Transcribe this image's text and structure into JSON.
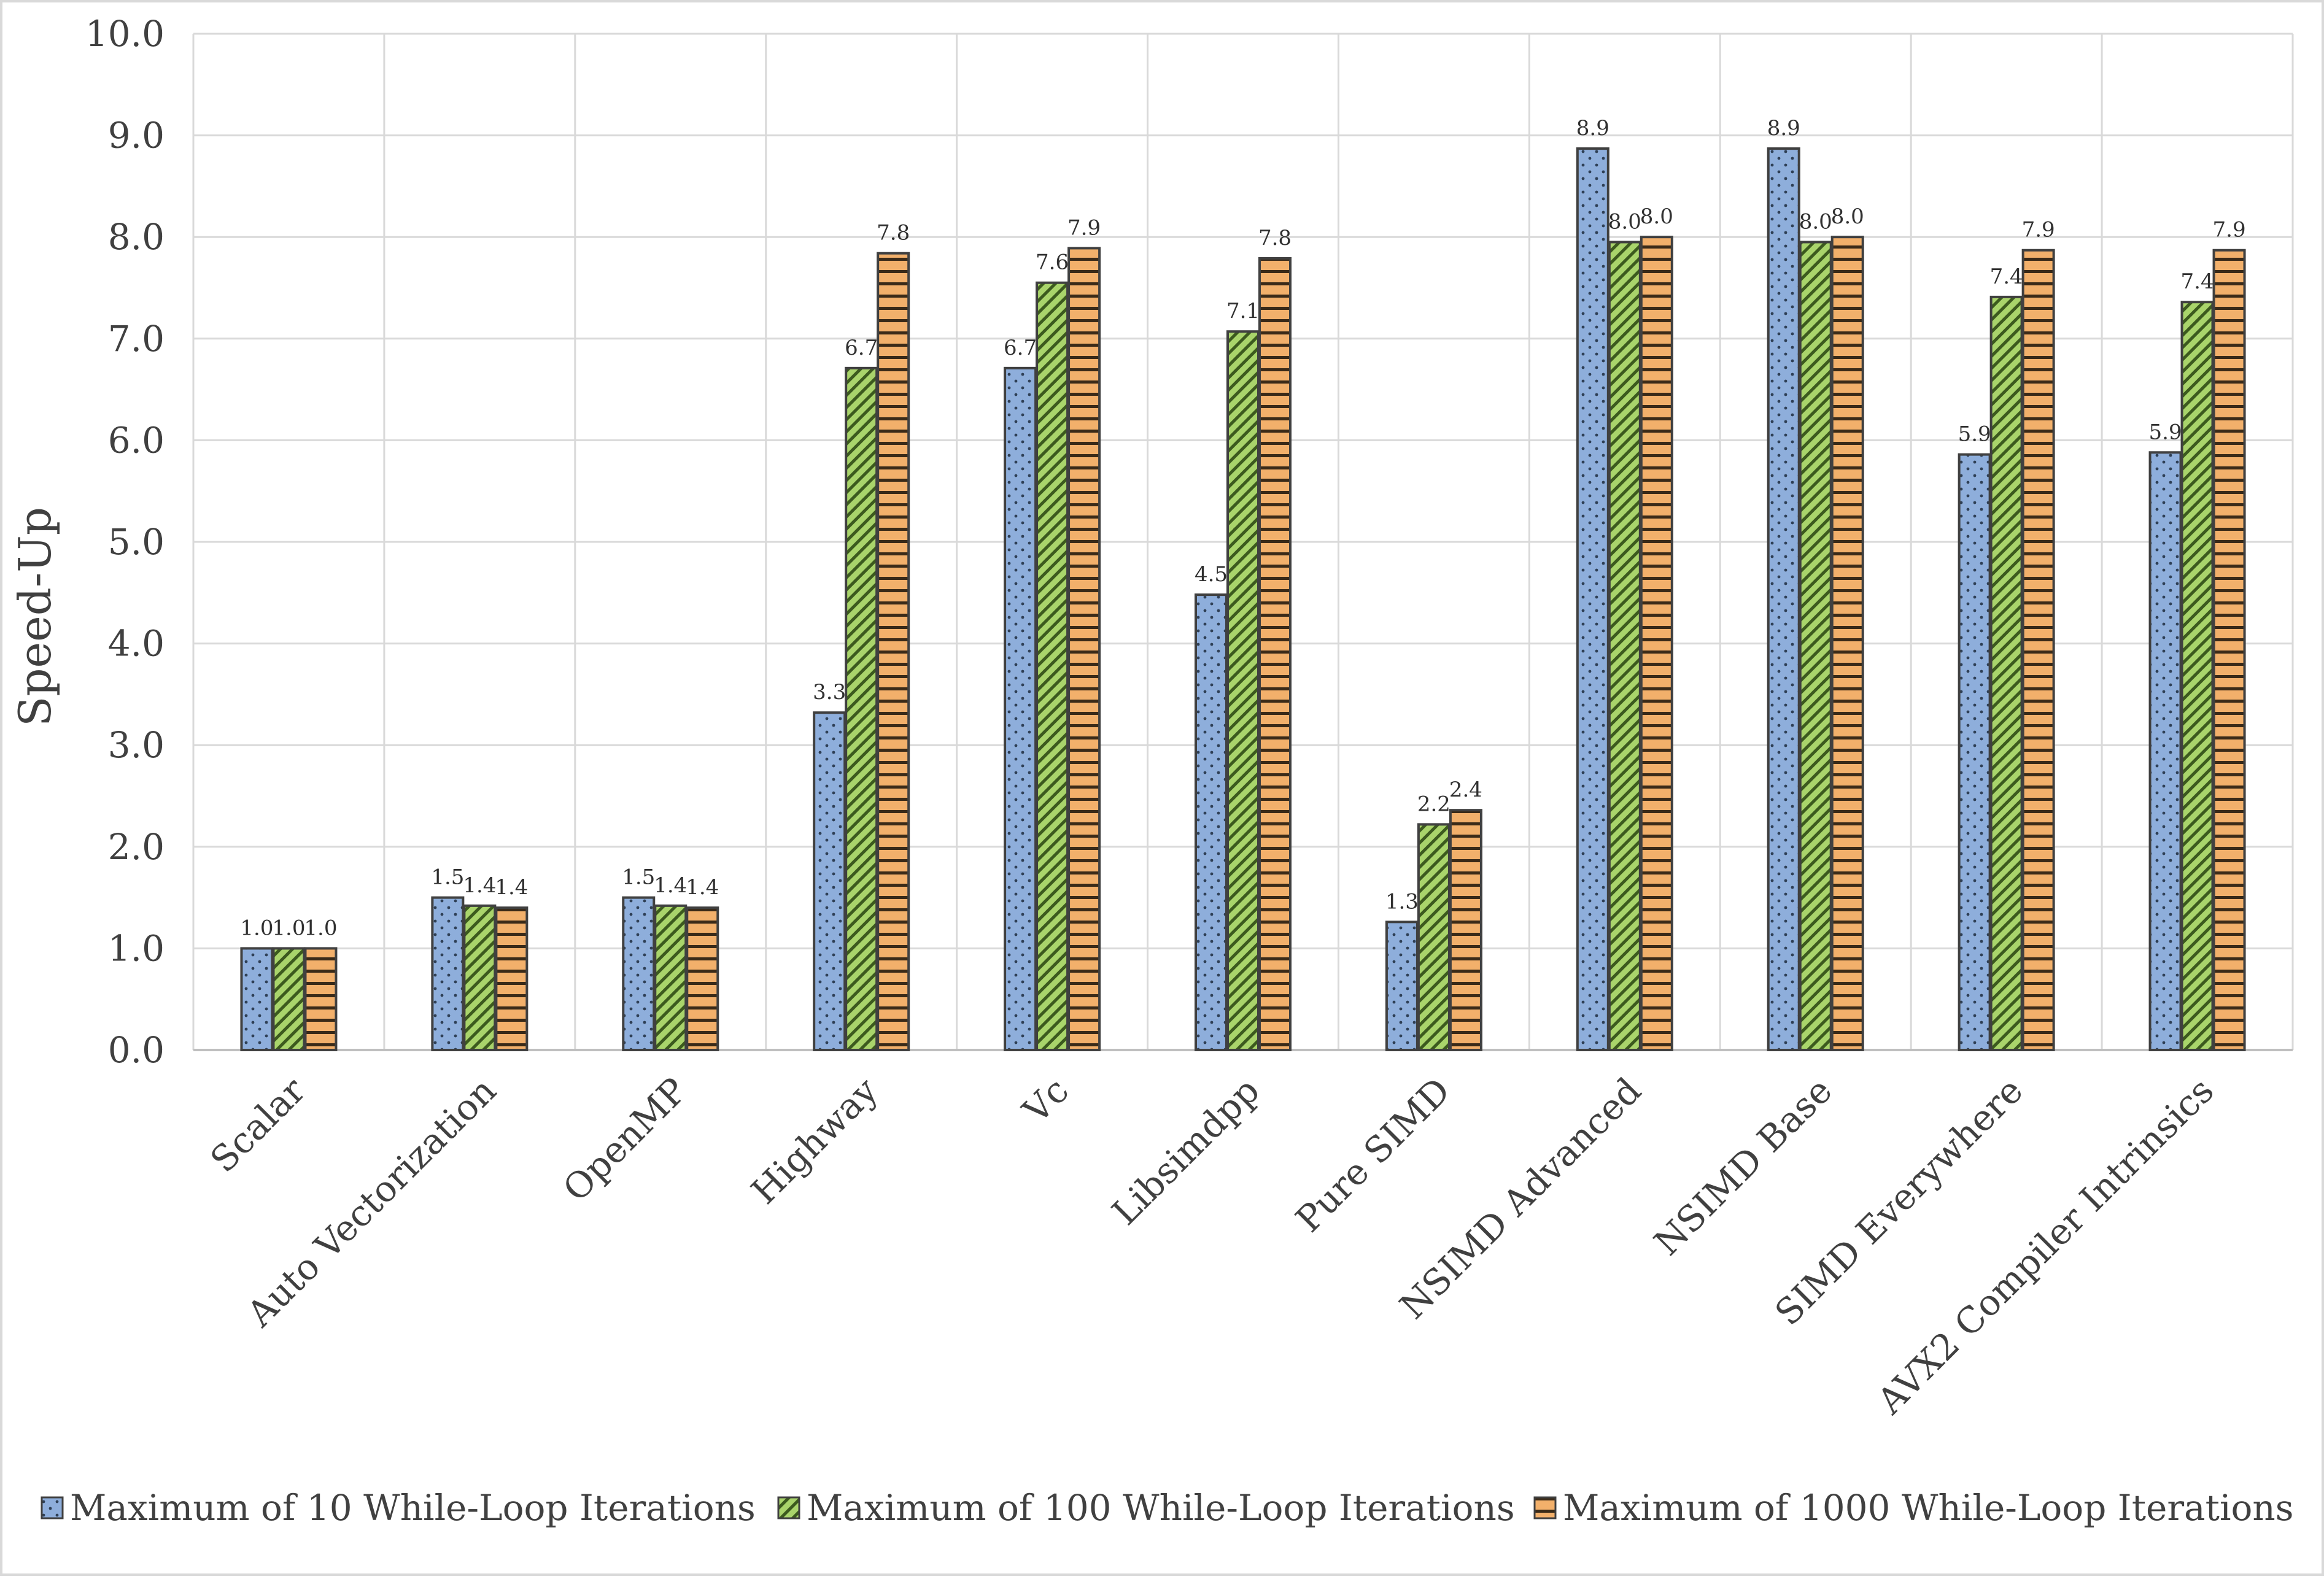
{
  "chart_data": {
    "type": "bar",
    "title": "",
    "xlabel": "",
    "ylabel": "Speed-Up",
    "ylim": [
      0,
      10
    ],
    "ytick_step": 1,
    "ytick_labels": [
      "0.0",
      "1.0",
      "2.0",
      "3.0",
      "4.0",
      "5.0",
      "6.0",
      "7.0",
      "8.0",
      "9.0",
      "10.0"
    ],
    "grid": true,
    "legend_position": "bottom",
    "categories": [
      "Scalar",
      "Auto Vectorization",
      "OpenMP",
      "Highway",
      "Vc",
      "Libsimdpp",
      "Pure SIMD",
      "NSIMD Advanced",
      "NSIMD Base",
      "SIMD Everywhere",
      "AVX2 Compiler Intrinsics"
    ],
    "series": [
      {
        "name": "Maximum of 10 While-Loop Iterations",
        "color": "#8eaedb",
        "pattern": "dots",
        "values": [
          1.0,
          1.5,
          1.5,
          3.32,
          6.71,
          4.48,
          1.26,
          8.87,
          8.87,
          5.86,
          5.88
        ],
        "labels": [
          "1.0",
          "1.5",
          "1.5",
          "3.3",
          "6.7",
          "4.5",
          "1.3",
          "8.9",
          "8.9",
          "5.9",
          "5.9"
        ]
      },
      {
        "name": "Maximum of 100 While-Loop Iterations",
        "color": "#a9d46b",
        "pattern": "diagonal",
        "values": [
          1.0,
          1.42,
          1.42,
          6.71,
          7.55,
          7.07,
          2.22,
          7.95,
          7.95,
          7.41,
          7.36
        ],
        "labels": [
          "1.0",
          "1.4",
          "1.4",
          "6.7",
          "7.6",
          "7.1",
          "2.2",
          "8.0",
          "8.0",
          "7.4",
          "7.4"
        ]
      },
      {
        "name": "Maximum of 1000 While-Loop Iterations",
        "color": "#f2b06b",
        "pattern": "horizontal",
        "values": [
          1.0,
          1.4,
          1.4,
          7.84,
          7.89,
          7.79,
          2.36,
          8.0,
          8.0,
          7.87,
          7.87
        ],
        "labels": [
          "1.0",
          "1.4",
          "1.4",
          "7.8",
          "7.9",
          "7.8",
          "2.4",
          "8.0",
          "8.0",
          "7.9",
          "7.9"
        ]
      }
    ]
  }
}
